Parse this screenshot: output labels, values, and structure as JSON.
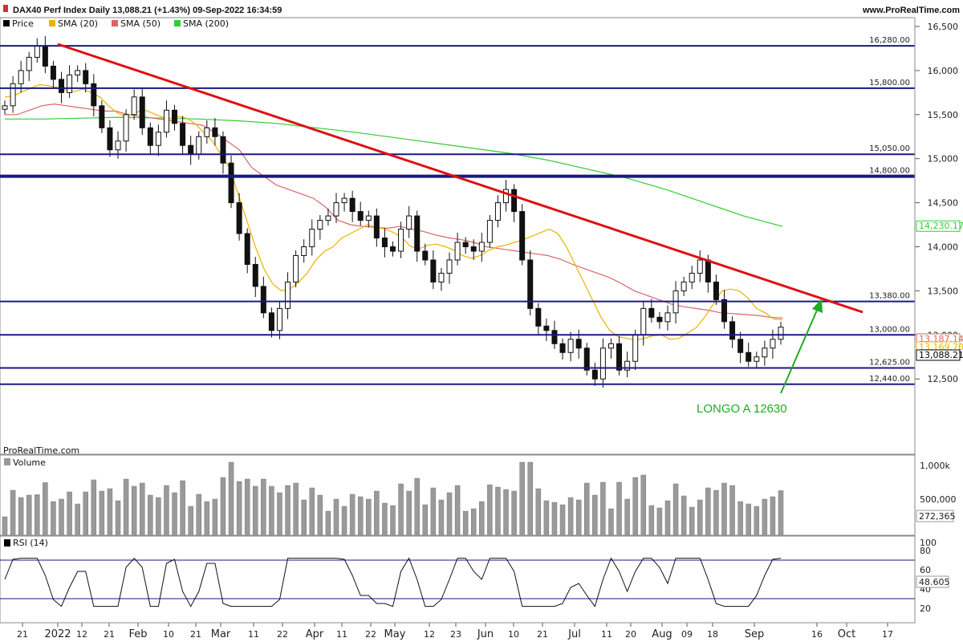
{
  "header": {
    "title": "DAX40 Perf Index Daily 13,088.21 (+1.43%) 09-Sep-2022 16:34:59",
    "site": "www.ProRealTime.com",
    "watermark": "ProRealTime.com"
  },
  "legend": [
    {
      "label": "Price",
      "color": "#000000"
    },
    {
      "label": "SMA (20)",
      "color": "#e8b400"
    },
    {
      "label": "SMA (50)",
      "color": "#d96666"
    },
    {
      "label": "SMA (200)",
      "color": "#33cc33"
    }
  ],
  "volume_panel": {
    "label": "Volume",
    "ticks": [
      "1,000k",
      "500,000",
      "272,365"
    ]
  },
  "rsi_panel": {
    "label": "RSI (14)",
    "ticks": [
      "100",
      "80",
      "60",
      "40",
      "20"
    ],
    "current": "48.605",
    "bands": [
      70,
      30
    ]
  },
  "annotation": {
    "text": "LONGO A 12630",
    "color": "#22aa22"
  },
  "chart_data": {
    "type": "candlestick",
    "title": "DAX40 Perf Index Daily",
    "y_axis_ticks": [
      "16,500",
      "16,000",
      "15,500",
      "15,000",
      "14,500",
      "14,000",
      "13,500",
      "13,000",
      "12,500"
    ],
    "ylim": [
      12250,
      16650
    ],
    "x_tick_labels": [
      "21",
      "2022",
      "12",
      "21",
      "Feb",
      "10",
      "21",
      "Mar",
      "11",
      "22",
      "Apr",
      "11",
      "22",
      "May",
      "12",
      "23",
      "Jun",
      "10",
      "21",
      "Jul",
      "11",
      "20",
      "Aug",
      "09",
      "18",
      "Sep",
      "16",
      "Oct",
      "17"
    ],
    "levels": [
      {
        "value": 16280,
        "label": "16,280.00"
      },
      {
        "value": 15800,
        "label": "15,800.00"
      },
      {
        "value": 15050,
        "label": "15,050.00"
      },
      {
        "value": 14800,
        "label": "14,800.00"
      },
      {
        "value": 13380,
        "label": "13,380.00"
      },
      {
        "value": 13000,
        "label": "13,000.00"
      },
      {
        "value": 12625,
        "label": "12,625.00"
      },
      {
        "value": 12440,
        "label": "12,440.00"
      }
    ],
    "last_values": [
      {
        "label": "14,230.17",
        "color": "#33cc33"
      },
      {
        "label": "13,187.14",
        "color": "#d96666"
      },
      {
        "label": "13,169.70",
        "color": "#e8b400"
      },
      {
        "label": "13,088.21",
        "color": "#000000"
      }
    ],
    "series": {
      "price": [
        15600,
        15850,
        16000,
        16150,
        16280,
        16050,
        15900,
        15750,
        15950,
        16000,
        15850,
        15600,
        15350,
        15100,
        15200,
        15500,
        15700,
        15350,
        15150,
        15300,
        15550,
        15400,
        15150,
        15050,
        15250,
        15350,
        15250,
        14950,
        14500,
        14150,
        13800,
        13550,
        13250,
        13050,
        13300,
        13600,
        13900,
        14000,
        14200,
        14300,
        14350,
        14500,
        14550,
        14400,
        14300,
        14350,
        14100,
        14000,
        13950,
        14200,
        14350,
        13950,
        13850,
        13600,
        13700,
        13850,
        14050,
        14000,
        13950,
        14050,
        14300,
        14500,
        14650,
        14400,
        13850,
        13300,
        13100,
        13050,
        12900,
        12800,
        12950,
        12850,
        12600,
        12500,
        12850,
        12900,
        12600,
        12700,
        13000,
        13300,
        13200,
        13150,
        13250,
        13500,
        13600,
        13700,
        13850,
        13600,
        13400,
        13150,
        12950,
        12800,
        12700,
        12750,
        12850,
        12950,
        13088
      ],
      "sma20": [
        15700,
        15710,
        15760,
        15800,
        15840,
        15830,
        15810,
        15780,
        15760,
        15790,
        15750,
        15700,
        15600,
        15520,
        15480,
        15510,
        15560,
        15520,
        15480,
        15450,
        15480,
        15460,
        15400,
        15300,
        15200,
        15050,
        14900,
        14600,
        14300,
        14000,
        13750,
        13580,
        13500,
        13520,
        13600,
        13700,
        13850,
        13950,
        14000,
        14100,
        14150,
        14200,
        14250,
        14220,
        14200,
        14160,
        14100,
        14000,
        13980,
        14020,
        14030,
        14000,
        13960,
        13900,
        13870,
        13900,
        13960,
        14000,
        14020,
        14050,
        14080,
        14120,
        14160,
        14200,
        14150,
        14000,
        13800,
        13600,
        13400,
        13200,
        13050,
        12980,
        12960,
        12940,
        12960,
        12990,
        13000,
        12950,
        12960,
        13020,
        13080,
        13200,
        13350,
        13500,
        13520,
        13500,
        13420,
        13300,
        13250,
        13180,
        13170
      ],
      "sma50": [
        15500,
        15500,
        15550,
        15600,
        15620,
        15600,
        15580,
        15560,
        15540,
        15540,
        15500,
        15480,
        15460,
        15440,
        15420,
        15400,
        15380,
        15300,
        15200,
        15100,
        14900,
        14800,
        14700,
        14650,
        14600,
        14550,
        14450,
        14300,
        14250,
        14230,
        14220,
        14210,
        14230,
        14200,
        14170,
        14130,
        14100,
        14080,
        14050,
        14000,
        13980,
        13960,
        13940,
        13920,
        13900,
        13860,
        13800,
        13750,
        13700,
        13650,
        13580,
        13500,
        13450,
        13400,
        13350,
        13320,
        13300,
        13280,
        13250,
        13240,
        13230,
        13220,
        13200,
        13190
      ],
      "sma200": [
        15450,
        15450,
        15460,
        15470,
        15460,
        15450,
        15430,
        15400,
        15350,
        15300,
        15240,
        15180,
        15120,
        15060,
        14980,
        14880,
        14780,
        14650,
        14500,
        14350,
        14230
      ]
    }
  }
}
